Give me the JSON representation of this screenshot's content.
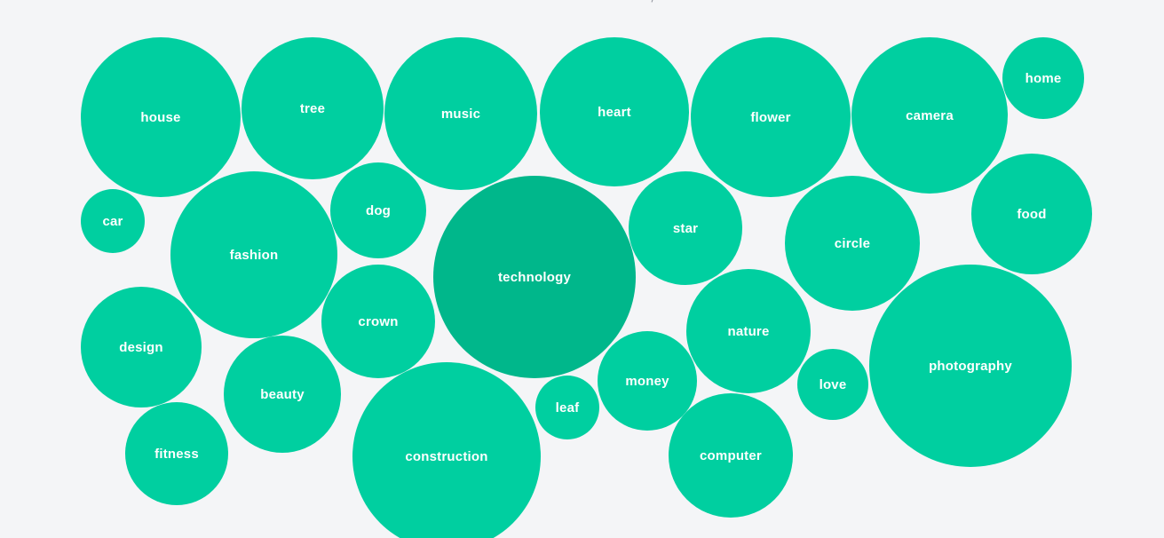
{
  "colors": {
    "background": "#f4f5f7",
    "bubble": "#00cfa0",
    "bubble_selected": "#00b78b",
    "label": "#ffffff"
  },
  "bubbles": [
    {
      "label": "house",
      "selected": false
    },
    {
      "label": "tree",
      "selected": false
    },
    {
      "label": "music",
      "selected": false
    },
    {
      "label": "heart",
      "selected": false
    },
    {
      "label": "flower",
      "selected": false
    },
    {
      "label": "camera",
      "selected": false
    },
    {
      "label": "home",
      "selected": false
    },
    {
      "label": "car",
      "selected": false
    },
    {
      "label": "fashion",
      "selected": false
    },
    {
      "label": "dog",
      "selected": false
    },
    {
      "label": "technology",
      "selected": true
    },
    {
      "label": "star",
      "selected": false
    },
    {
      "label": "circle",
      "selected": false
    },
    {
      "label": "food",
      "selected": false
    },
    {
      "label": "crown",
      "selected": false
    },
    {
      "label": "design",
      "selected": false
    },
    {
      "label": "nature",
      "selected": false
    },
    {
      "label": "photography",
      "selected": false
    },
    {
      "label": "beauty",
      "selected": false
    },
    {
      "label": "money",
      "selected": false
    },
    {
      "label": "love",
      "selected": false
    },
    {
      "label": "leaf",
      "selected": false
    },
    {
      "label": "fitness",
      "selected": false
    },
    {
      "label": "construction",
      "selected": false
    },
    {
      "label": "computer",
      "selected": false
    }
  ]
}
